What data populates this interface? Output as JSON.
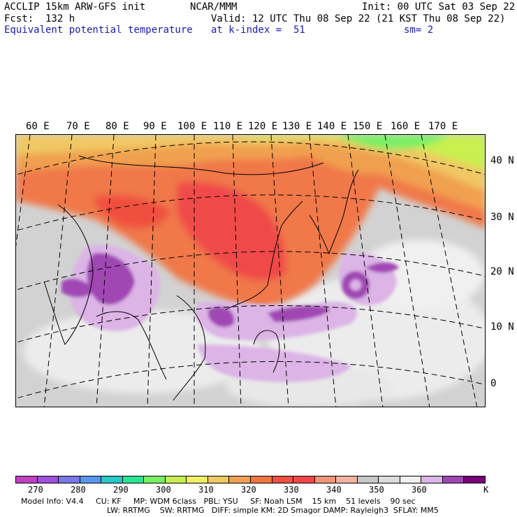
{
  "header": {
    "model": "ACCLIP 15km ARW-GFS init",
    "org": "NCAR/MMM",
    "init": "Init: 00 UTC Sat 03 Sep 22",
    "fcst": "Fcst:  132 h",
    "valid": "Valid: 12 UTC Thu 08 Sep 22 (21 KST Thu 08 Sep 22)",
    "field": "Equivalent potential temperature",
    "level": "at k-index =  51",
    "smooth": "sm= 2"
  },
  "map": {
    "lon_labels": [
      "60 E",
      "70 E",
      "80 E",
      "90 E",
      "100 E",
      "110 E",
      "120 E",
      "130 E",
      "140 E",
      "150 E",
      "160 E",
      "170 E"
    ],
    "lat_labels": [
      "40 N",
      "30 N",
      "20 N",
      "10 N",
      "0"
    ]
  },
  "colorbar": {
    "colors": [
      "#c040c0",
      "#a050dc",
      "#7878e6",
      "#5a96f0",
      "#28c8c8",
      "#28e696",
      "#78f064",
      "#c8f050",
      "#f0f064",
      "#f0c864",
      "#f0a050",
      "#f07840",
      "#f05040",
      "#f04848",
      "#f09678",
      "#f0b4a0",
      "#c8c8c8",
      "#dcdcdc",
      "#f0f0f0",
      "#dcb4e6",
      "#a046b4",
      "#780078"
    ],
    "labels": [
      "270",
      "280",
      "290",
      "300",
      "310",
      "320",
      "330",
      "340",
      "350",
      "360"
    ],
    "unit": "K"
  },
  "footer": {
    "line1": "Model Info: V4.4     CU: KF     MP: WDM 6class   PBL: YSU     SF: Noah LSM    15 km    51 levels    90 sec",
    "line2": "LW: RRTMG    SW: RRTMG   DIFF: simple KM: 2D Smagor DAMP: Rayleigh3  SFLAY: MM5"
  }
}
